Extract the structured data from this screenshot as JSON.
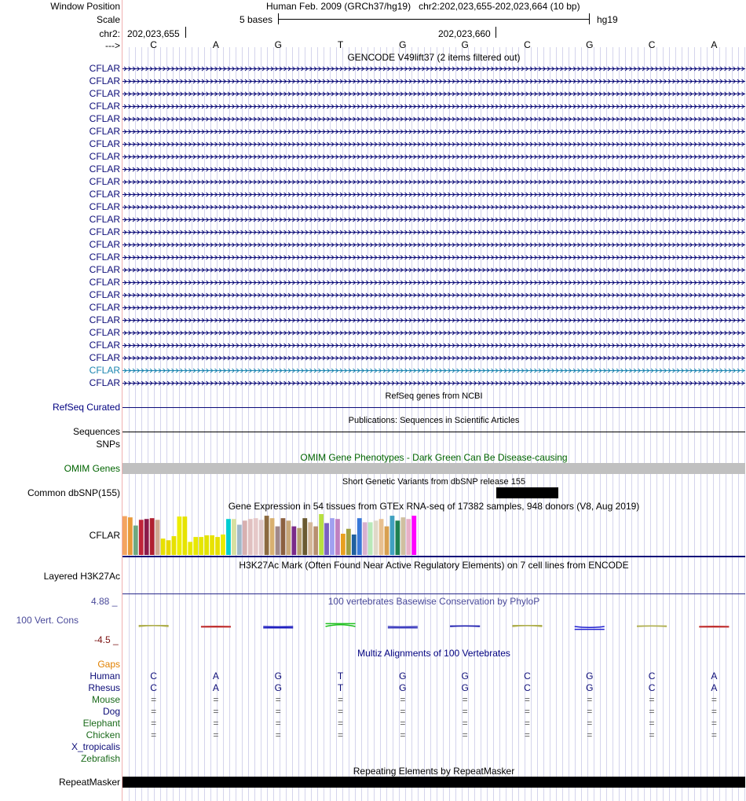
{
  "header": {
    "window_position_label": "Window Position",
    "scale_label": "Scale",
    "chrom_label": "chr2:",
    "strand_label": "--->",
    "assembly_text": "Human Feb. 2009 (GRCh37/hg19)   chr2:202,023,655-202,023,664 (10 bp)",
    "scale_text": "5 bases",
    "db_label": "hg19",
    "coord_left": "202,023,655",
    "coord_mid": "202,023,660"
  },
  "bases": [
    "C",
    "A",
    "G",
    "T",
    "G",
    "G",
    "C",
    "G",
    "C",
    "A"
  ],
  "gencode": {
    "title": "GENCODE V49lift37 (2 items filtered out)",
    "items": [
      "CFLAR",
      "CFLAR",
      "CFLAR",
      "CFLAR",
      "CFLAR",
      "CFLAR",
      "CFLAR",
      "CFLAR",
      "CFLAR",
      "CFLAR",
      "CFLAR",
      "CFLAR",
      "CFLAR",
      "CFLAR",
      "CFLAR",
      "CFLAR",
      "CFLAR",
      "CFLAR",
      "CFLAR",
      "CFLAR",
      "CFLAR",
      "CFLAR",
      "CFLAR",
      "CFLAR",
      "CFLAR",
      "CFLAR"
    ],
    "item_colors": {
      "normal": "#0c0c78",
      "highlight": "#1b85b0"
    },
    "highlight_index": 24
  },
  "refseq": {
    "title": "RefSeq genes from NCBI",
    "label": "RefSeq Curated"
  },
  "publications": {
    "title": "Publications: Sequences in Scientific Articles",
    "label": "Sequences"
  },
  "snps": {
    "label": "SNPs"
  },
  "omim": {
    "title": "OMIM Gene Phenotypes - Dark Green Can Be Disease-causing",
    "label": "OMIM Genes"
  },
  "dbsnp": {
    "title": "Short Genetic Variants from dbSNP release 155",
    "label": "Common dbSNP(155)"
  },
  "gtex": {
    "title": "Gene Expression in 54 tissues from GTEx RNA-seq of 17382 samples, 948 donors (V8, Aug 2019)",
    "label": "CFLAR",
    "levels": [
      0.95,
      0.92,
      0.72,
      0.86,
      0.88,
      0.9,
      0.86,
      0.4,
      0.36,
      0.46,
      0.94,
      0.94,
      0.32,
      0.44,
      0.44,
      0.48,
      0.48,
      0.44,
      0.5,
      0.88,
      0.88,
      0.74,
      0.84,
      0.88,
      0.9,
      0.86,
      0.96,
      0.9,
      0.7,
      0.9,
      0.84,
      0.7,
      0.66,
      0.9,
      0.8,
      0.7,
      1.0,
      0.78,
      0.9,
      0.88,
      0.52,
      0.64,
      0.5,
      0.9,
      0.8,
      0.8,
      0.84,
      0.88,
      0.7,
      0.96,
      0.84,
      0.92,
      0.88,
      0.96
    ],
    "colors": [
      "#f4a460",
      "#e89a3a",
      "#6fa880",
      "#c0243a",
      "#8b1a4a",
      "#b02030",
      "#cfa890",
      "#e8e000",
      "#e8d800",
      "#e6e000",
      "#eded00",
      "#e6e300",
      "#e8e800",
      "#e8e800",
      "#e6e600",
      "#e3e300",
      "#e8e200",
      "#e6e000",
      "#ebeb00",
      "#00ced1",
      "#d8e0a0",
      "#a0b8c8",
      "#d8b0b0",
      "#e0c0c0",
      "#e6c8c8",
      "#e0c8c8",
      "#8b6a40",
      "#d8b070",
      "#a0888a",
      "#8b6040",
      "#c8a878",
      "#7a2a8a",
      "#b8a070",
      "#6a5a30",
      "#d4b89a",
      "#b89070",
      "#b8e040",
      "#7a60c0",
      "#a0a0f0",
      "#c080c0",
      "#e8a020",
      "#a0a040",
      "#2060a0",
      "#3878d8",
      "#d8b0d0",
      "#b8e8b8",
      "#e0d8c8",
      "#e8c090",
      "#d8a050",
      "#40a0c0",
      "#1e8050",
      "#d0c0a0",
      "#e8b0c8",
      "#ff00ff"
    ]
  },
  "h3k27ac": {
    "title": "H3K27Ac Mark (Often Found Near Active Regulatory Elements) on 7 cell lines from ENCODE",
    "label": "Layered H3K27Ac"
  },
  "phylop": {
    "title": "100 vertebrates Basewise Conservation by PhyloP",
    "label": "100 Vert. Cons",
    "max": "4.88 _",
    "min": "-4.5 _",
    "scores": [
      0.2,
      -0.1,
      -0.3,
      0.6,
      -0.3,
      0.1,
      0.2,
      -0.6,
      0.1,
      -0.1
    ],
    "score_colors": [
      "#b0b050",
      "#c03030",
      "#2020c0",
      "#20c020",
      "#4040c0",
      "#2020b0",
      "#b0b050",
      "#2020d0",
      "#b0b050",
      "#c03030"
    ]
  },
  "multiz": {
    "title": "Multiz Alignments of 100 Vertebrates",
    "gaps_label": "Gaps",
    "species": [
      {
        "name": "Human",
        "bases": [
          "C",
          "A",
          "G",
          "T",
          "G",
          "G",
          "C",
          "G",
          "C",
          "A"
        ]
      },
      {
        "name": "Rhesus",
        "bases": [
          "C",
          "A",
          "G",
          "T",
          "G",
          "G",
          "C",
          "G",
          "C",
          "A"
        ]
      },
      {
        "name": "Mouse",
        "bases": [
          "=",
          "=",
          "=",
          "=",
          "=",
          "=",
          "=",
          "=",
          "=",
          "="
        ]
      },
      {
        "name": "Dog",
        "bases": [
          "=",
          "=",
          "=",
          "=",
          "=",
          "=",
          "=",
          "=",
          "=",
          "="
        ]
      },
      {
        "name": "Elephant",
        "bases": [
          "=",
          "=",
          "=",
          "=",
          "=",
          "=",
          "=",
          "=",
          "=",
          "="
        ]
      },
      {
        "name": "Chicken",
        "bases": [
          "=",
          "=",
          "=",
          "=",
          "=",
          "=",
          "=",
          "=",
          "=",
          "="
        ]
      },
      {
        "name": "X_tropicalis",
        "bases": [
          "",
          "",
          "",
          "",
          "",
          "",
          "",
          "",
          "",
          ""
        ]
      },
      {
        "name": "Zebrafish",
        "bases": [
          "",
          "",
          "",
          "",
          "",
          "",
          "",
          "",
          "",
          ""
        ]
      }
    ]
  },
  "repeatmasker": {
    "title": "Repeating Elements by RepeatMasker",
    "label": "RepeatMasker"
  }
}
